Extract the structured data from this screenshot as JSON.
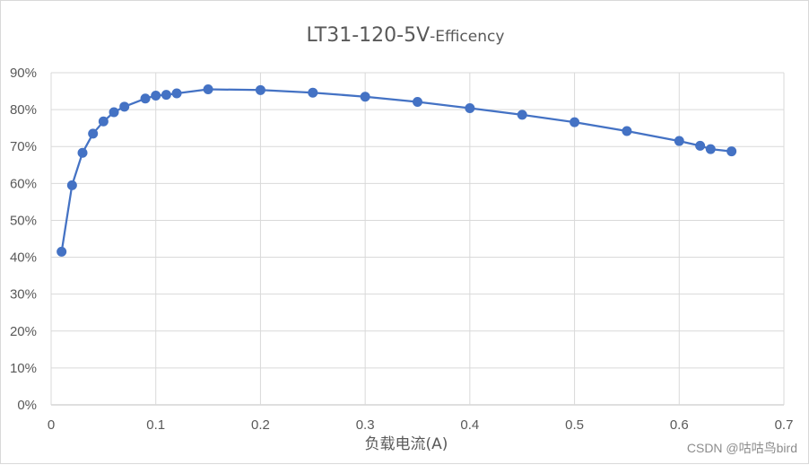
{
  "chart_data": {
    "type": "line",
    "title": "LT31-120-5V",
    "title_suffix": "-Efficency",
    "xlabel": "负载电流(A)",
    "ylabel": "",
    "xlim": [
      0,
      0.7
    ],
    "ylim": [
      0,
      0.9
    ],
    "x_ticks": [
      "0",
      "0.1",
      "0.2",
      "0.3",
      "0.4",
      "0.5",
      "0.6",
      "0.7"
    ],
    "y_ticks": [
      "0%",
      "10%",
      "20%",
      "30%",
      "40%",
      "50%",
      "60%",
      "70%",
      "80%",
      "90%"
    ],
    "grid": true,
    "legend": "none",
    "series": [
      {
        "name": "Efficency",
        "color": "#4472c4",
        "x": [
          0.01,
          0.02,
          0.03,
          0.04,
          0.05,
          0.06,
          0.07,
          0.09,
          0.1,
          0.11,
          0.12,
          0.15,
          0.2,
          0.25,
          0.3,
          0.35,
          0.4,
          0.45,
          0.5,
          0.55,
          0.6,
          0.62,
          0.63,
          0.65
        ],
        "y": [
          0.415,
          0.595,
          0.683,
          0.735,
          0.768,
          0.793,
          0.808,
          0.83,
          0.838,
          0.84,
          0.844,
          0.855,
          0.853,
          0.846,
          0.835,
          0.821,
          0.804,
          0.786,
          0.766,
          0.742,
          0.715,
          0.702,
          0.693,
          0.687
        ]
      }
    ]
  },
  "watermark": "CSDN @咕咕鸟bird"
}
